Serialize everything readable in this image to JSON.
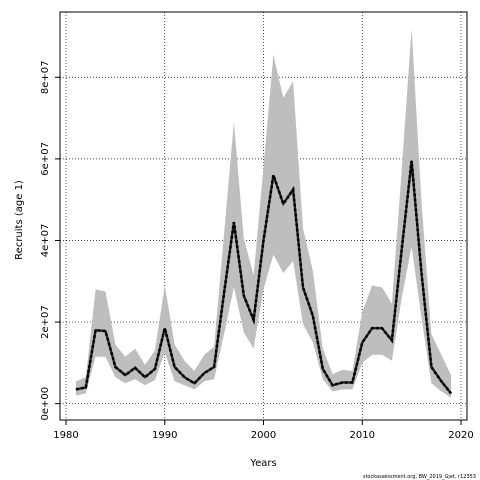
{
  "chart_data": {
    "type": "line",
    "xlabel": "Years",
    "ylabel": "Recruits (age 1)",
    "xlim": [
      1980,
      2020
    ],
    "ylim": [
      -4000000,
      96000000
    ],
    "x_ticks": [
      1980,
      1990,
      2000,
      2010,
      2020
    ],
    "x_tick_labels": [
      "1980",
      "1990",
      "2000",
      "2010",
      "2020"
    ],
    "y_ticks": [
      0,
      20000000,
      40000000,
      60000000,
      80000000
    ],
    "y_tick_labels": [
      "0e+00",
      "2e+07",
      "4e+07",
      "6e+07",
      "8e+07"
    ],
    "grid": true,
    "line_color": "#222222",
    "band_color": "#bebebe",
    "credit": "stockassessment.org, BW_2019_Gjet, r12353",
    "series": [
      {
        "x": [
          1981,
          1982,
          1983,
          1984,
          1985,
          1986,
          1987,
          1988,
          1989,
          1990,
          1991,
          1992,
          1993,
          1994,
          1995,
          1996,
          1997,
          1998,
          1999,
          2000,
          2001,
          2002,
          2003,
          2004,
          2005,
          2006,
          2007,
          2008,
          2009,
          2010,
          2011,
          2012,
          2013,
          2014,
          2015,
          2016,
          2017,
          2018,
          2019
        ],
        "values": [
          3500000,
          4000000,
          18000000,
          17800000,
          9000000,
          7000000,
          8800000,
          6500000,
          8500000,
          18500000,
          9000000,
          6500000,
          5000000,
          7500000,
          9000000,
          27000000,
          44500000,
          26500000,
          20500000,
          40000000,
          56000000,
          49000000,
          52500000,
          28500000,
          21500000,
          8500000,
          4500000,
          5200000,
          5200000,
          15000000,
          18500000,
          18500000,
          15500000,
          38000000,
          59500000,
          32000000,
          9000000,
          5500000,
          2500000
        ],
        "lower": [
          2000000,
          2500000,
          11500000,
          11500000,
          6500000,
          5000000,
          6000000,
          4500000,
          5800000,
          12500000,
          5500000,
          4500000,
          3500000,
          5500000,
          6000000,
          17000000,
          28500000,
          17500000,
          13500000,
          28000000,
          36500000,
          32000000,
          35000000,
          19500000,
          15000000,
          6000000,
          3000000,
          3500000,
          3500000,
          10000000,
          12000000,
          12000000,
          10500000,
          26000000,
          38500000,
          21000000,
          5000000,
          3000000,
          1500000
        ],
        "upper": [
          5500000,
          6500000,
          28000000,
          27500000,
          14500000,
          11500000,
          13500000,
          9500000,
          13000000,
          29000000,
          14500000,
          10500000,
          8000000,
          12000000,
          14000000,
          41500000,
          69000000,
          40500000,
          31500000,
          58000000,
          85500000,
          75000000,
          79000000,
          43000000,
          32500000,
          13500000,
          7200000,
          8300000,
          8000000,
          22500000,
          29000000,
          28500000,
          24500000,
          57500000,
          92000000,
          49500000,
          17000000,
          12000000,
          7000000
        ]
      }
    ]
  }
}
